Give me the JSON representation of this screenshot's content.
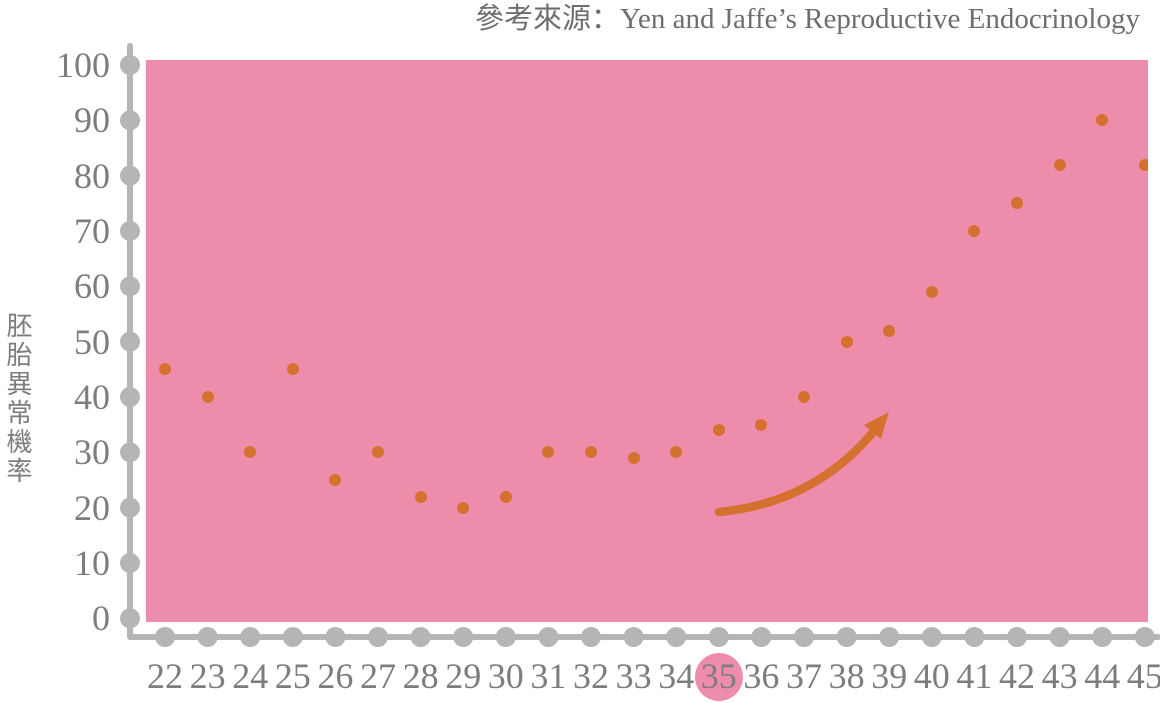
{
  "title": {
    "text": "參考來源：Yen and Jaffe’s Reproductive Endocrinology"
  },
  "colors": {
    "plot_bg": "#ee8cab",
    "dot": "#d4712e",
    "arrow": "#d4712e",
    "axis": "#b5b5b5",
    "tick_text": "#7d7d7d",
    "title_text": "#6e6e6e"
  },
  "chart_data": {
    "type": "scatter",
    "title": "參考來源：Yen and Jaffe’s Reproductive Endocrinology",
    "xlabel": "",
    "ylabel": "胚胎異常機率",
    "x": [
      22,
      23,
      24,
      25,
      26,
      27,
      28,
      29,
      30,
      31,
      32,
      33,
      34,
      35,
      36,
      37,
      38,
      39,
      40,
      41,
      42,
      43,
      44,
      45
    ],
    "values": [
      45,
      40,
      30,
      45,
      25,
      30,
      22,
      20,
      22,
      30,
      30,
      29,
      30,
      34,
      35,
      40,
      50,
      52,
      59,
      70,
      75,
      82,
      90,
      82
    ],
    "x_ticks": [
      22,
      23,
      24,
      25,
      26,
      27,
      28,
      29,
      30,
      31,
      32,
      33,
      34,
      35,
      36,
      37,
      38,
      39,
      40,
      41,
      42,
      43,
      44,
      45
    ],
    "y_ticks": [
      0,
      10,
      20,
      30,
      40,
      50,
      60,
      70,
      80,
      90,
      100
    ],
    "xlim": [
      22,
      45
    ],
    "ylim": [
      0,
      100
    ],
    "highlighted_x": 35,
    "grid": false,
    "legend": null,
    "annotations": [
      {
        "type": "arrow",
        "meaning": "rising-trend",
        "from_xy": [
          35.0,
          19
        ],
        "to_xy": [
          38.8,
          35
        ]
      }
    ]
  }
}
